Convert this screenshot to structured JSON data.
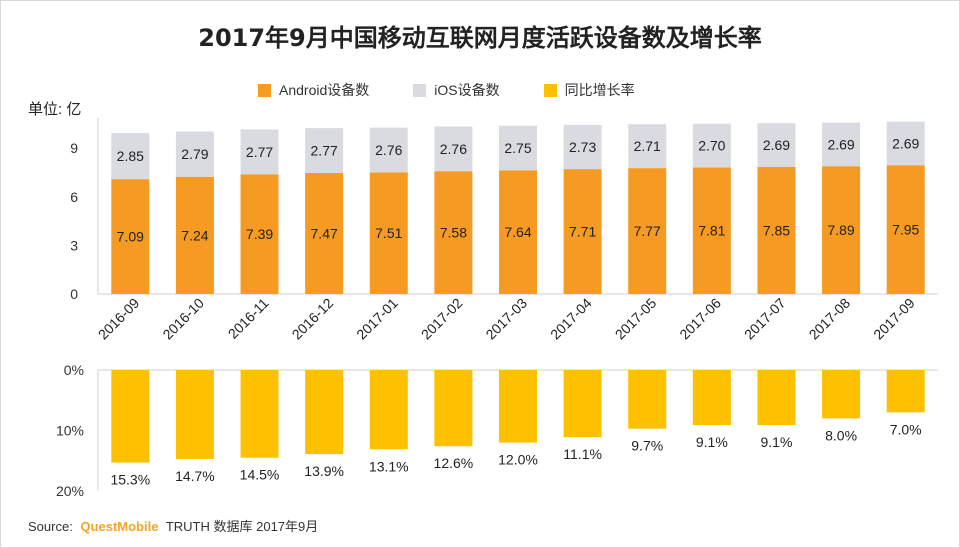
{
  "title": "2017年9月中国移动互联网月度活跃设备数及增长率",
  "unit_label": "单位: 亿",
  "legend": [
    {
      "label": "Android设备数",
      "color": "#f59a23"
    },
    {
      "label": "iOS设备数",
      "color": "#d9dbe0"
    },
    {
      "label": "同比增长率",
      "color": "#ffc000"
    }
  ],
  "source": {
    "prefix": "Source:",
    "brand": "QuestMobile",
    "suffix": "TRUTH 数据库 2017年9月"
  },
  "chart_data": [
    {
      "type": "bar",
      "stacked": true,
      "categories": [
        "2016-09",
        "2016-10",
        "2016-11",
        "2016-12",
        "2017-01",
        "2017-02",
        "2017-03",
        "2017-04",
        "2017-05",
        "2017-06",
        "2017-07",
        "2017-08",
        "2017-09"
      ],
      "series": [
        {
          "name": "Android设备数",
          "color": "#f59a23",
          "values": [
            7.09,
            7.24,
            7.39,
            7.47,
            7.51,
            7.58,
            7.64,
            7.71,
            7.77,
            7.81,
            7.85,
            7.89,
            7.95
          ]
        },
        {
          "name": "iOS设备数",
          "color": "#d9dbe0",
          "values": [
            2.85,
            2.79,
            2.77,
            2.77,
            2.76,
            2.76,
            2.75,
            2.73,
            2.71,
            2.7,
            2.69,
            2.69,
            2.69
          ]
        }
      ],
      "ylabel": "单位: 亿",
      "ylim": [
        0,
        10.5
      ],
      "yticks": [
        0,
        3,
        6,
        9
      ],
      "ytick_labels": [
        "0",
        "3",
        "6",
        "9"
      ]
    },
    {
      "type": "bar",
      "orientation": "downward",
      "categories": [
        "2016-09",
        "2016-10",
        "2016-11",
        "2016-12",
        "2017-01",
        "2017-02",
        "2017-03",
        "2017-04",
        "2017-05",
        "2017-06",
        "2017-07",
        "2017-08",
        "2017-09"
      ],
      "series": [
        {
          "name": "同比增长率",
          "color": "#ffc000",
          "values": [
            15.3,
            14.7,
            14.5,
            13.9,
            13.1,
            12.6,
            12.0,
            11.1,
            9.7,
            9.1,
            9.1,
            8.0,
            7.0
          ]
        }
      ],
      "value_labels": [
        "15.3%",
        "14.7%",
        "14.5%",
        "13.9%",
        "13.1%",
        "12.6%",
        "12.0%",
        "11.1%",
        "9.7%",
        "9.1%",
        "9.1%",
        "8.0%",
        "7.0%"
      ],
      "ylim": [
        0,
        20
      ],
      "yticks": [
        0,
        10,
        20
      ],
      "ytick_labels": [
        "0%",
        "10%",
        "20%"
      ]
    }
  ]
}
